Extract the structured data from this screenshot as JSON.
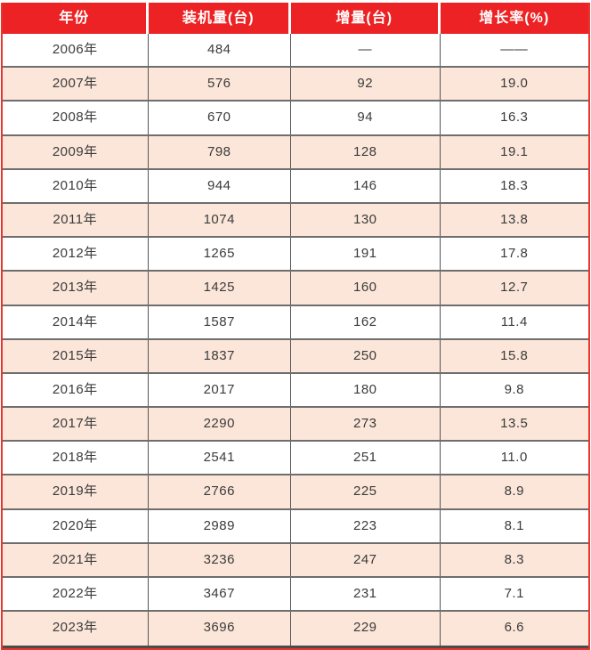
{
  "table": {
    "columns": [
      "年份",
      "装机量(台)",
      "增量(台)",
      "增长率(%)"
    ],
    "rows": [
      [
        "2006年",
        "484",
        "—",
        "——"
      ],
      [
        "2007年",
        "576",
        "92",
        "19.0"
      ],
      [
        "2008年",
        "670",
        "94",
        "16.3"
      ],
      [
        "2009年",
        "798",
        "128",
        "19.1"
      ],
      [
        "2010年",
        "944",
        "146",
        "18.3"
      ],
      [
        "2011年",
        "1074",
        "130",
        "13.8"
      ],
      [
        "2012年",
        "1265",
        "191",
        "17.8"
      ],
      [
        "2013年",
        "1425",
        "160",
        "12.7"
      ],
      [
        "2014年",
        "1587",
        "162",
        "11.4"
      ],
      [
        "2015年",
        "1837",
        "250",
        "15.8"
      ],
      [
        "2016年",
        "2017",
        "180",
        "9.8"
      ],
      [
        "2017年",
        "2290",
        "273",
        "13.5"
      ],
      [
        "2018年",
        "2541",
        "251",
        "11.0"
      ],
      [
        "2019年",
        "2766",
        "225",
        "8.9"
      ],
      [
        "2020年",
        "2989",
        "223",
        "8.1"
      ],
      [
        "2021年",
        "3236",
        "247",
        "8.3"
      ],
      [
        "2022年",
        "3467",
        "231",
        "7.1"
      ],
      [
        "2023年",
        "3696",
        "229",
        "6.6"
      ]
    ],
    "colors": {
      "header_bg": "#ec2224",
      "header_text": "#ffffff",
      "zebra_pink": "#fbe6d9",
      "row_white": "#ffffff",
      "horizontal_border": "#6e6e6e",
      "vertical_border": "#555555",
      "outer_red_border": "#e8362c",
      "bottom_rule": "#4c4c4c",
      "body_text": "#3b3b3b"
    }
  },
  "chart_data": {
    "type": "table",
    "title": "",
    "categories": [
      "2006年",
      "2007年",
      "2008年",
      "2009年",
      "2010年",
      "2011年",
      "2012年",
      "2013年",
      "2014年",
      "2015年",
      "2016年",
      "2017年",
      "2018年",
      "2019年",
      "2020年",
      "2021年",
      "2022年",
      "2023年"
    ],
    "series": [
      {
        "name": "装机量(台)",
        "values": [
          484,
          576,
          670,
          798,
          944,
          1074,
          1265,
          1425,
          1587,
          1837,
          2017,
          2290,
          2541,
          2766,
          2989,
          3236,
          3467,
          3696
        ]
      },
      {
        "name": "增量(台)",
        "values": [
          null,
          92,
          94,
          128,
          146,
          130,
          191,
          160,
          162,
          250,
          180,
          273,
          251,
          225,
          223,
          247,
          231,
          229
        ]
      },
      {
        "name": "增长率(%)",
        "values": [
          null,
          19.0,
          16.3,
          19.1,
          18.3,
          13.8,
          17.8,
          12.7,
          11.4,
          15.8,
          9.8,
          13.5,
          11.0,
          8.9,
          8.1,
          8.3,
          7.1,
          6.6
        ]
      }
    ],
    "legend_position": "none",
    "grid": true
  }
}
